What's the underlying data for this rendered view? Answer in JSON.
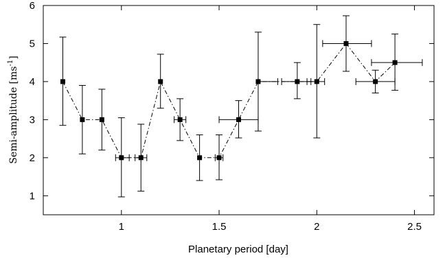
{
  "chart_data": {
    "type": "scatter",
    "xlabel": "Planetary period [day]",
    "ylabel": "Semi-amplitude [ms",
    "ylabel_superscript": "-1",
    "ylabel_close": "]",
    "xlim": [
      0.6,
      2.6
    ],
    "ylim": [
      0.5,
      6
    ],
    "xticks": [
      1,
      1.5,
      2,
      2.5
    ],
    "xtick_labels": [
      "1",
      "1.5",
      "2",
      "2.5"
    ],
    "yticks": [
      1,
      2,
      3,
      4,
      5,
      6
    ],
    "ytick_labels": [
      "1",
      "2",
      "3",
      "4",
      "5",
      "6"
    ],
    "grid": false,
    "line_style": "dash-dot",
    "marker": "square",
    "color": "#000000",
    "series": [
      {
        "points": [
          {
            "x": 0.7,
            "y": 4,
            "y_lo": 2.85,
            "y_hi": 5.17,
            "x_lo": 0.7,
            "x_hi": 0.7
          },
          {
            "x": 0.8,
            "y": 3,
            "y_lo": 2.1,
            "y_hi": 3.9,
            "x_lo": 0.8,
            "x_hi": 0.8
          },
          {
            "x": 0.9,
            "y": 3,
            "y_lo": 2.2,
            "y_hi": 3.8,
            "x_lo": 0.9,
            "x_hi": 0.9
          },
          {
            "x": 1.0,
            "y": 2,
            "y_lo": 0.97,
            "y_hi": 3.05,
            "x_lo": 0.97,
            "x_hi": 1.04
          },
          {
            "x": 1.1,
            "y": 2,
            "y_lo": 1.12,
            "y_hi": 2.88,
            "x_lo": 1.07,
            "x_hi": 1.13
          },
          {
            "x": 1.2,
            "y": 4,
            "y_lo": 3.3,
            "y_hi": 4.72,
            "x_lo": 1.2,
            "x_hi": 1.2
          },
          {
            "x": 1.3,
            "y": 3,
            "y_lo": 2.45,
            "y_hi": 3.55,
            "x_lo": 1.27,
            "x_hi": 1.33
          },
          {
            "x": 1.4,
            "y": 2,
            "y_lo": 1.4,
            "y_hi": 2.6,
            "x_lo": 1.4,
            "x_hi": 1.4
          },
          {
            "x": 1.5,
            "y": 2,
            "y_lo": 1.42,
            "y_hi": 2.6,
            "x_lo": 1.48,
            "x_hi": 1.52
          },
          {
            "x": 1.6,
            "y": 3,
            "y_lo": 2.52,
            "y_hi": 3.5,
            "x_lo": 1.5,
            "x_hi": 1.7
          },
          {
            "x": 1.7,
            "y": 4,
            "y_lo": 2.7,
            "y_hi": 5.3,
            "x_lo": 1.7,
            "x_hi": 1.8
          },
          {
            "x": 1.9,
            "y": 4,
            "y_lo": 3.55,
            "y_hi": 4.5,
            "x_lo": 1.82,
            "x_hi": 1.97
          },
          {
            "x": 2.0,
            "y": 4,
            "y_lo": 2.52,
            "y_hi": 5.5,
            "x_lo": 1.95,
            "x_hi": 2.04
          },
          {
            "x": 2.15,
            "y": 5,
            "y_lo": 4.27,
            "y_hi": 5.73,
            "x_lo": 2.03,
            "x_hi": 2.28
          },
          {
            "x": 2.3,
            "y": 4,
            "y_lo": 3.7,
            "y_hi": 4.3,
            "x_lo": 2.2,
            "x_hi": 2.4
          },
          {
            "x": 2.4,
            "y": 4.5,
            "y_lo": 3.77,
            "y_hi": 5.25,
            "x_lo": 2.28,
            "x_hi": 2.54
          }
        ]
      }
    ]
  }
}
